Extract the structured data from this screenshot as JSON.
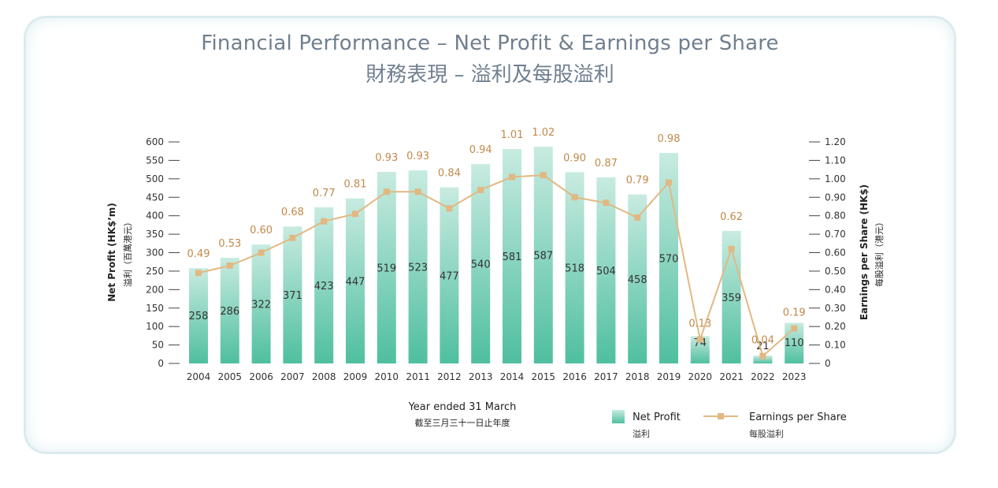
{
  "chart_data": {
    "type": "bar",
    "title": "Financial Performance – Net Profit & Earnings per Share",
    "title_zh": "財務表現 – 溢利及每股溢利",
    "categories": [
      "2004",
      "2005",
      "2006",
      "2007",
      "2008",
      "2009",
      "2010",
      "2011",
      "2012",
      "2013",
      "2014",
      "2015",
      "2016",
      "2017",
      "2018",
      "2019",
      "2020",
      "2021",
      "2022",
      "2023"
    ],
    "series": [
      {
        "name": "Net Profit",
        "name_zh": "溢利",
        "kind": "bar",
        "axis": "left",
        "values": [
          258,
          286,
          322,
          371,
          423,
          447,
          519,
          523,
          477,
          540,
          581,
          587,
          518,
          504,
          458,
          570,
          74,
          359,
          21,
          110
        ],
        "labels": [
          "258",
          "286",
          "322",
          "371",
          "423",
          "447",
          "519",
          "523",
          "477",
          "540",
          "581",
          "587",
          "518",
          "504",
          "458",
          "570",
          "74",
          "359",
          "21",
          "110"
        ]
      },
      {
        "name": "Earnings per Share",
        "name_zh": "每股溢利",
        "kind": "line",
        "axis": "right",
        "values": [
          0.49,
          0.53,
          0.6,
          0.68,
          0.77,
          0.81,
          0.93,
          0.93,
          0.84,
          0.94,
          1.01,
          1.02,
          0.9,
          0.87,
          0.79,
          0.98,
          0.13,
          0.62,
          0.04,
          0.19
        ],
        "labels": [
          "0.49",
          "0.53",
          "0.60",
          "0.68",
          "0.77",
          "0.81",
          "0.93",
          "0.93",
          "0.84",
          "0.94",
          "1.01",
          "1.02",
          "0.90",
          "0.87",
          "0.79",
          "0.98",
          "0.13",
          "0.62",
          "0.04",
          "0.19"
        ]
      }
    ],
    "ylim": [
      0,
      600
    ],
    "y2lim": [
      0,
      1.2
    ],
    "yticks": [
      "0",
      "50",
      "100",
      "150",
      "200",
      "250",
      "300",
      "350",
      "400",
      "450",
      "500",
      "550",
      "600"
    ],
    "y2ticks": [
      "0",
      "0.10",
      "0.20",
      "0.30",
      "0.40",
      "0.50",
      "0.60",
      "0.70",
      "0.80",
      "0.90",
      "1.00",
      "1.10",
      "1.20"
    ],
    "ylabel": "Net Profit (HK$’m)",
    "ylabel_zh": "溢利（百萬港元）",
    "y2label": "Earnings per Share (HK$)",
    "y2label_zh": "每股溢利（港元）",
    "xlabel": "Year ended 31 March",
    "xlabel_zh": "截至三月三十一日止年度",
    "legend_position": "bottom-right",
    "grid": false
  },
  "colors": {
    "bar_top": "#c8ebe1",
    "bar_bottom": "#4fbf9f",
    "line": "#e2b882",
    "eps_text": "#c08a4a",
    "title": "#6f7f8f"
  }
}
